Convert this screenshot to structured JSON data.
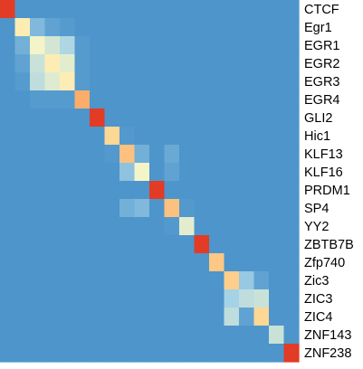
{
  "chart_data": {
    "type": "heatmap",
    "title": "",
    "xlabel": "",
    "ylabel": "",
    "legend": "none",
    "row_labels": [
      "CTCF",
      "Egr1",
      "EGR1",
      "EGR2",
      "EGR3",
      "EGR4",
      "GLI2",
      "Hic1",
      "KLF13",
      "KLF16",
      "PRDM1",
      "SP4",
      "YY2",
      "ZBTB7B",
      "Zfp740",
      "Zic3",
      "ZIC3",
      "ZIC4",
      "ZNF143",
      "ZNF238"
    ],
    "col_labels": [],
    "colorscale": {
      "min": 0.0,
      "max": 1.0,
      "colors": [
        "#2e7bbf",
        "#5a9fd0",
        "#a6d3e6",
        "#fdf8c4",
        "#fdd48f",
        "#fb9a5a",
        "#e23b26"
      ]
    },
    "values": [
      [
        1.0,
        0.12,
        0.12,
        0.12,
        0.12,
        0.12,
        0.12,
        0.12,
        0.12,
        0.12,
        0.12,
        0.12,
        0.12,
        0.12,
        0.12,
        0.12,
        0.12,
        0.12,
        0.12,
        0.12
      ],
      [
        0.12,
        0.55,
        0.25,
        0.18,
        0.15,
        0.12,
        0.12,
        0.12,
        0.12,
        0.12,
        0.12,
        0.12,
        0.12,
        0.12,
        0.12,
        0.12,
        0.12,
        0.12,
        0.12,
        0.12
      ],
      [
        0.12,
        0.22,
        0.48,
        0.42,
        0.35,
        0.15,
        0.12,
        0.12,
        0.12,
        0.12,
        0.12,
        0.12,
        0.12,
        0.12,
        0.12,
        0.12,
        0.12,
        0.12,
        0.12,
        0.12
      ],
      [
        0.12,
        0.18,
        0.4,
        0.55,
        0.45,
        0.15,
        0.12,
        0.12,
        0.12,
        0.12,
        0.12,
        0.12,
        0.12,
        0.12,
        0.12,
        0.12,
        0.12,
        0.12,
        0.12,
        0.12
      ],
      [
        0.12,
        0.15,
        0.38,
        0.44,
        0.55,
        0.15,
        0.12,
        0.12,
        0.12,
        0.12,
        0.12,
        0.12,
        0.12,
        0.12,
        0.12,
        0.12,
        0.12,
        0.12,
        0.12,
        0.12
      ],
      [
        0.12,
        0.12,
        0.15,
        0.15,
        0.15,
        0.78,
        0.12,
        0.12,
        0.12,
        0.12,
        0.12,
        0.12,
        0.12,
        0.12,
        0.12,
        0.12,
        0.12,
        0.12,
        0.12,
        0.12
      ],
      [
        0.12,
        0.12,
        0.12,
        0.12,
        0.12,
        0.12,
        1.0,
        0.12,
        0.12,
        0.12,
        0.12,
        0.12,
        0.12,
        0.12,
        0.12,
        0.12,
        0.12,
        0.12,
        0.12,
        0.12
      ],
      [
        0.12,
        0.12,
        0.12,
        0.12,
        0.12,
        0.12,
        0.12,
        0.65,
        0.14,
        0.12,
        0.12,
        0.12,
        0.12,
        0.12,
        0.12,
        0.12,
        0.12,
        0.12,
        0.12,
        0.12
      ],
      [
        0.12,
        0.12,
        0.12,
        0.12,
        0.12,
        0.12,
        0.12,
        0.14,
        0.72,
        0.22,
        0.12,
        0.2,
        0.12,
        0.12,
        0.12,
        0.12,
        0.12,
        0.12,
        0.12,
        0.12
      ],
      [
        0.12,
        0.12,
        0.12,
        0.12,
        0.12,
        0.12,
        0.12,
        0.12,
        0.28,
        0.48,
        0.12,
        0.18,
        0.12,
        0.12,
        0.12,
        0.12,
        0.12,
        0.12,
        0.12,
        0.12
      ],
      [
        0.12,
        0.12,
        0.12,
        0.12,
        0.12,
        0.12,
        0.12,
        0.12,
        0.12,
        0.12,
        1.0,
        0.12,
        0.12,
        0.12,
        0.12,
        0.12,
        0.12,
        0.12,
        0.12,
        0.12
      ],
      [
        0.12,
        0.12,
        0.12,
        0.12,
        0.12,
        0.12,
        0.12,
        0.12,
        0.22,
        0.25,
        0.12,
        0.72,
        0.14,
        0.12,
        0.12,
        0.12,
        0.12,
        0.12,
        0.12,
        0.12
      ],
      [
        0.12,
        0.12,
        0.12,
        0.12,
        0.12,
        0.12,
        0.12,
        0.12,
        0.12,
        0.12,
        0.12,
        0.14,
        0.45,
        0.12,
        0.12,
        0.12,
        0.12,
        0.12,
        0.12,
        0.12
      ],
      [
        0.12,
        0.12,
        0.12,
        0.12,
        0.12,
        0.12,
        0.12,
        0.12,
        0.12,
        0.12,
        0.12,
        0.12,
        0.12,
        1.0,
        0.12,
        0.12,
        0.12,
        0.12,
        0.12,
        0.12
      ],
      [
        0.12,
        0.12,
        0.12,
        0.12,
        0.12,
        0.12,
        0.12,
        0.12,
        0.12,
        0.12,
        0.12,
        0.12,
        0.12,
        0.12,
        0.7,
        0.12,
        0.12,
        0.12,
        0.12,
        0.12
      ],
      [
        0.12,
        0.12,
        0.12,
        0.12,
        0.12,
        0.12,
        0.12,
        0.12,
        0.12,
        0.12,
        0.12,
        0.12,
        0.12,
        0.12,
        0.12,
        0.68,
        0.3,
        0.18,
        0.12,
        0.12
      ],
      [
        0.12,
        0.12,
        0.12,
        0.12,
        0.12,
        0.12,
        0.12,
        0.12,
        0.12,
        0.12,
        0.12,
        0.12,
        0.12,
        0.12,
        0.12,
        0.33,
        0.38,
        0.4,
        0.12,
        0.12
      ],
      [
        0.12,
        0.12,
        0.12,
        0.12,
        0.12,
        0.12,
        0.12,
        0.12,
        0.12,
        0.12,
        0.12,
        0.12,
        0.12,
        0.12,
        0.12,
        0.38,
        0.18,
        0.65,
        0.12,
        0.12
      ],
      [
        0.12,
        0.12,
        0.12,
        0.12,
        0.12,
        0.12,
        0.12,
        0.12,
        0.12,
        0.12,
        0.12,
        0.12,
        0.12,
        0.12,
        0.12,
        0.12,
        0.12,
        0.12,
        0.4,
        0.12
      ],
      [
        0.12,
        0.12,
        0.12,
        0.12,
        0.12,
        0.12,
        0.12,
        0.12,
        0.12,
        0.12,
        0.12,
        0.12,
        0.12,
        0.12,
        0.12,
        0.12,
        0.12,
        0.12,
        0.12,
        1.0
      ]
    ]
  }
}
